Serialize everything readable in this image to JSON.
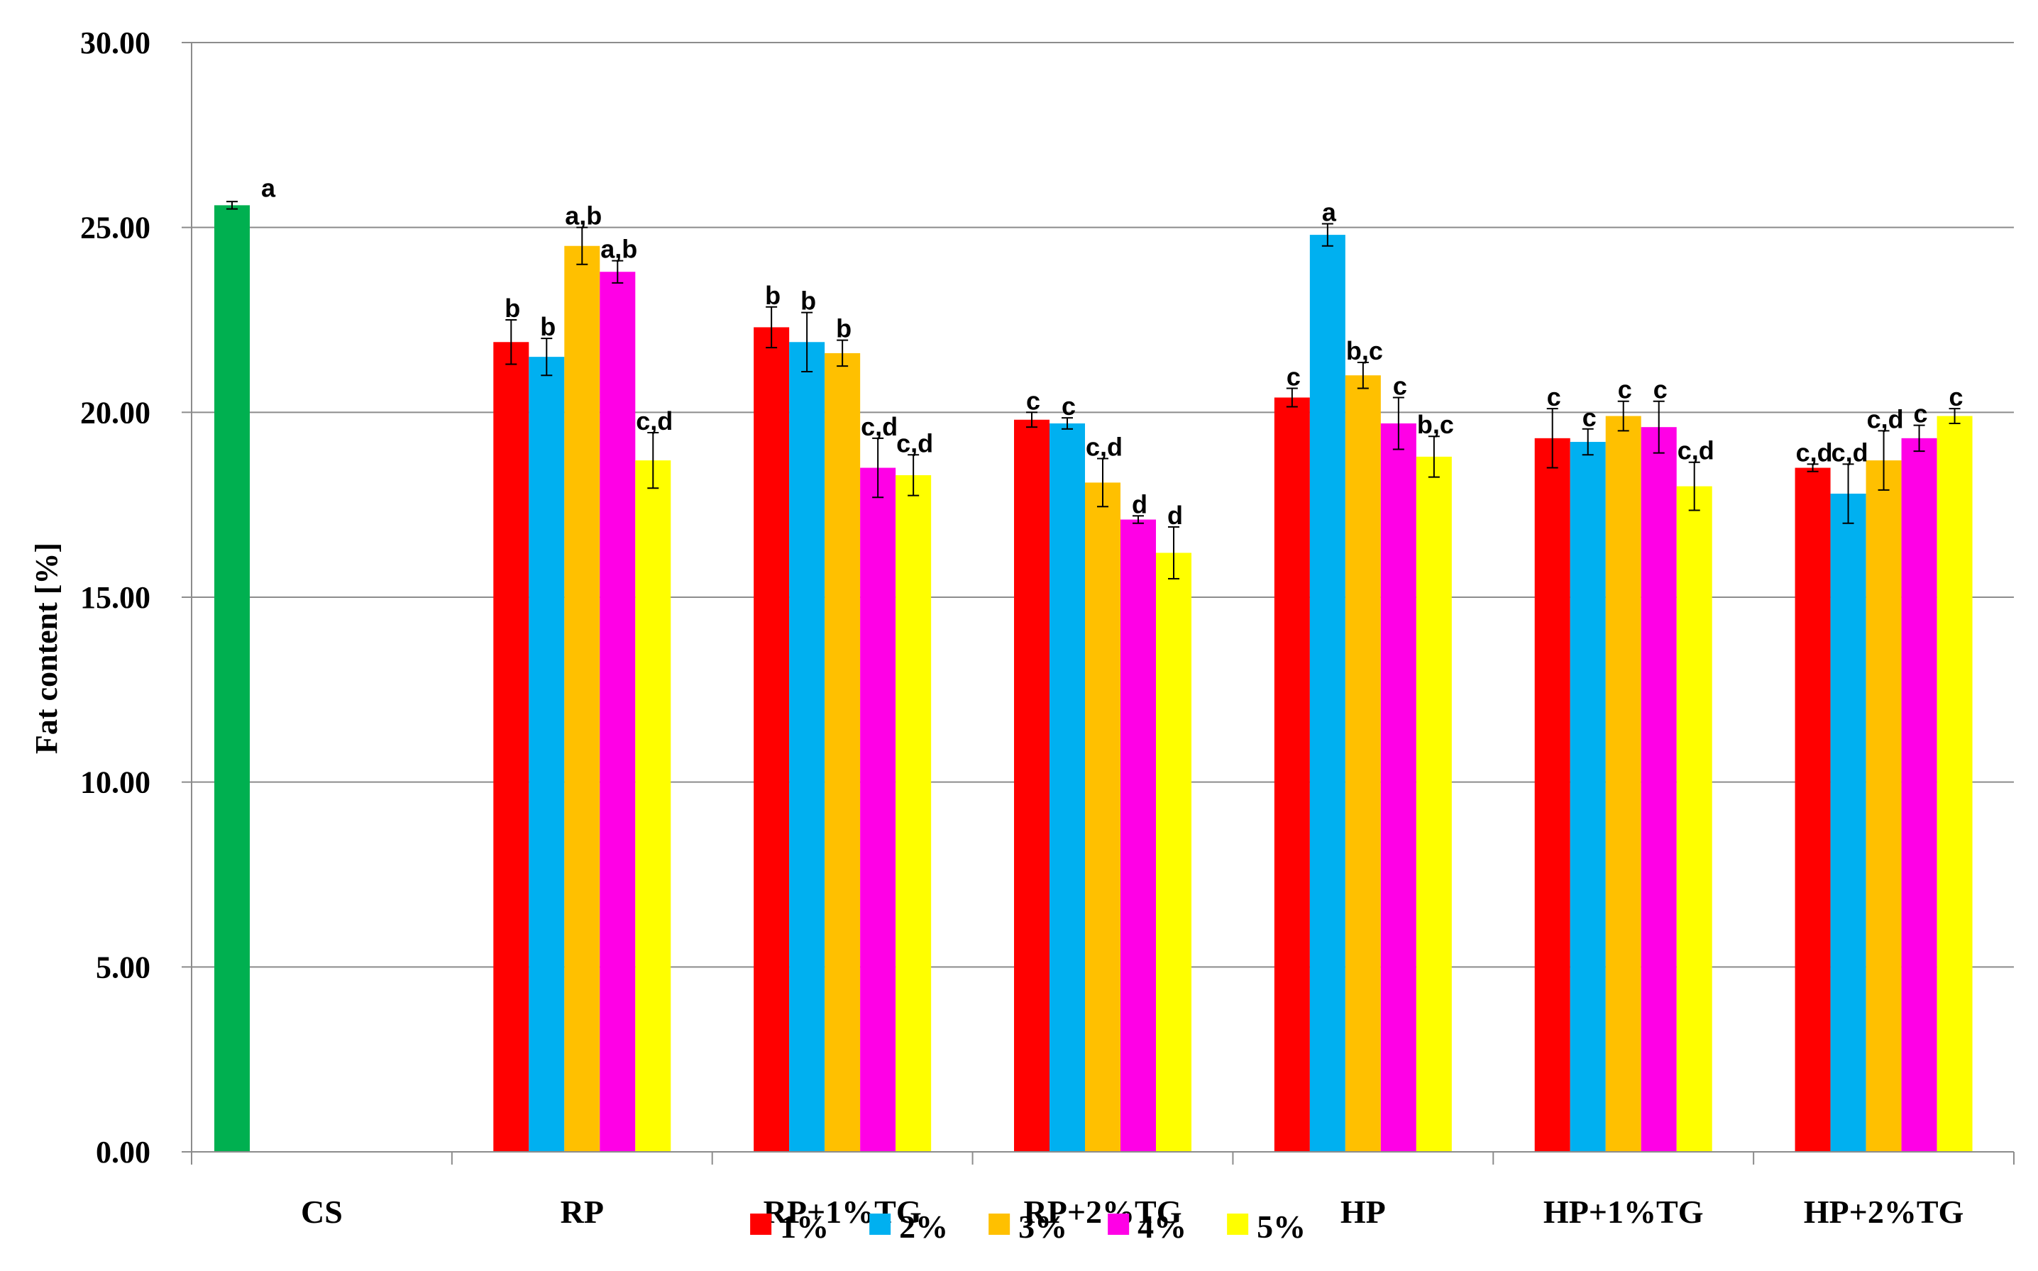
{
  "chart_data": {
    "type": "bar",
    "title": "",
    "xlabel": "",
    "ylabel": "Fat content [%]",
    "ylim": [
      0,
      30
    ],
    "yticks": [
      "0.00",
      "5.00",
      "10.00",
      "15.00",
      "20.00",
      "25.00",
      "30.00"
    ],
    "grid": true,
    "legend_position": "bottom",
    "categories": [
      "CS",
      "RP",
      "RP+1%TG",
      "RP+2%TG",
      "HP",
      "HP+1%TG",
      "HP+2%TG"
    ],
    "control": {
      "category": "CS",
      "value": 25.6,
      "error": 0.1,
      "label": "a",
      "color": "#00b050"
    },
    "series": [
      {
        "name": "1%",
        "color": "#ff0000",
        "values": [
          null,
          21.9,
          22.3,
          19.8,
          20.4,
          19.3,
          18.5
        ],
        "errors": [
          null,
          0.6,
          0.55,
          0.2,
          0.25,
          0.8,
          0.1
        ],
        "labels": [
          null,
          "b",
          "b",
          "c",
          "c",
          "c",
          "c,d"
        ]
      },
      {
        "name": "2%",
        "color": "#00b0f0",
        "values": [
          null,
          21.5,
          21.9,
          19.7,
          24.8,
          19.2,
          17.8
        ],
        "errors": [
          null,
          0.5,
          0.8,
          0.15,
          0.3,
          0.35,
          0.8
        ],
        "labels": [
          null,
          "b",
          "b",
          "c",
          "a",
          "c",
          "c,d"
        ]
      },
      {
        "name": "3%",
        "color": "#ffc000",
        "values": [
          null,
          24.5,
          21.6,
          18.1,
          21.0,
          19.9,
          18.7
        ],
        "errors": [
          null,
          0.5,
          0.35,
          0.65,
          0.35,
          0.4,
          0.8
        ],
        "labels": [
          null,
          "a,b",
          "b",
          "c,d",
          "b,c",
          "c",
          "c,d"
        ]
      },
      {
        "name": "4%",
        "color": "#ff00e6",
        "values": [
          null,
          23.8,
          18.5,
          17.1,
          19.7,
          19.6,
          19.3
        ],
        "errors": [
          null,
          0.3,
          0.8,
          0.1,
          0.7,
          0.7,
          0.35
        ],
        "labels": [
          null,
          "a,b",
          "c,d",
          "d",
          "c",
          "c",
          "c"
        ]
      },
      {
        "name": "5%",
        "color": "#ffff00",
        "values": [
          null,
          18.7,
          18.3,
          16.2,
          18.8,
          18.0,
          19.9
        ],
        "errors": [
          null,
          0.75,
          0.55,
          0.7,
          0.55,
          0.65,
          0.2
        ],
        "labels": [
          null,
          "c,d",
          "c,d",
          "d",
          "b,c",
          "c,d",
          "c"
        ]
      }
    ]
  }
}
